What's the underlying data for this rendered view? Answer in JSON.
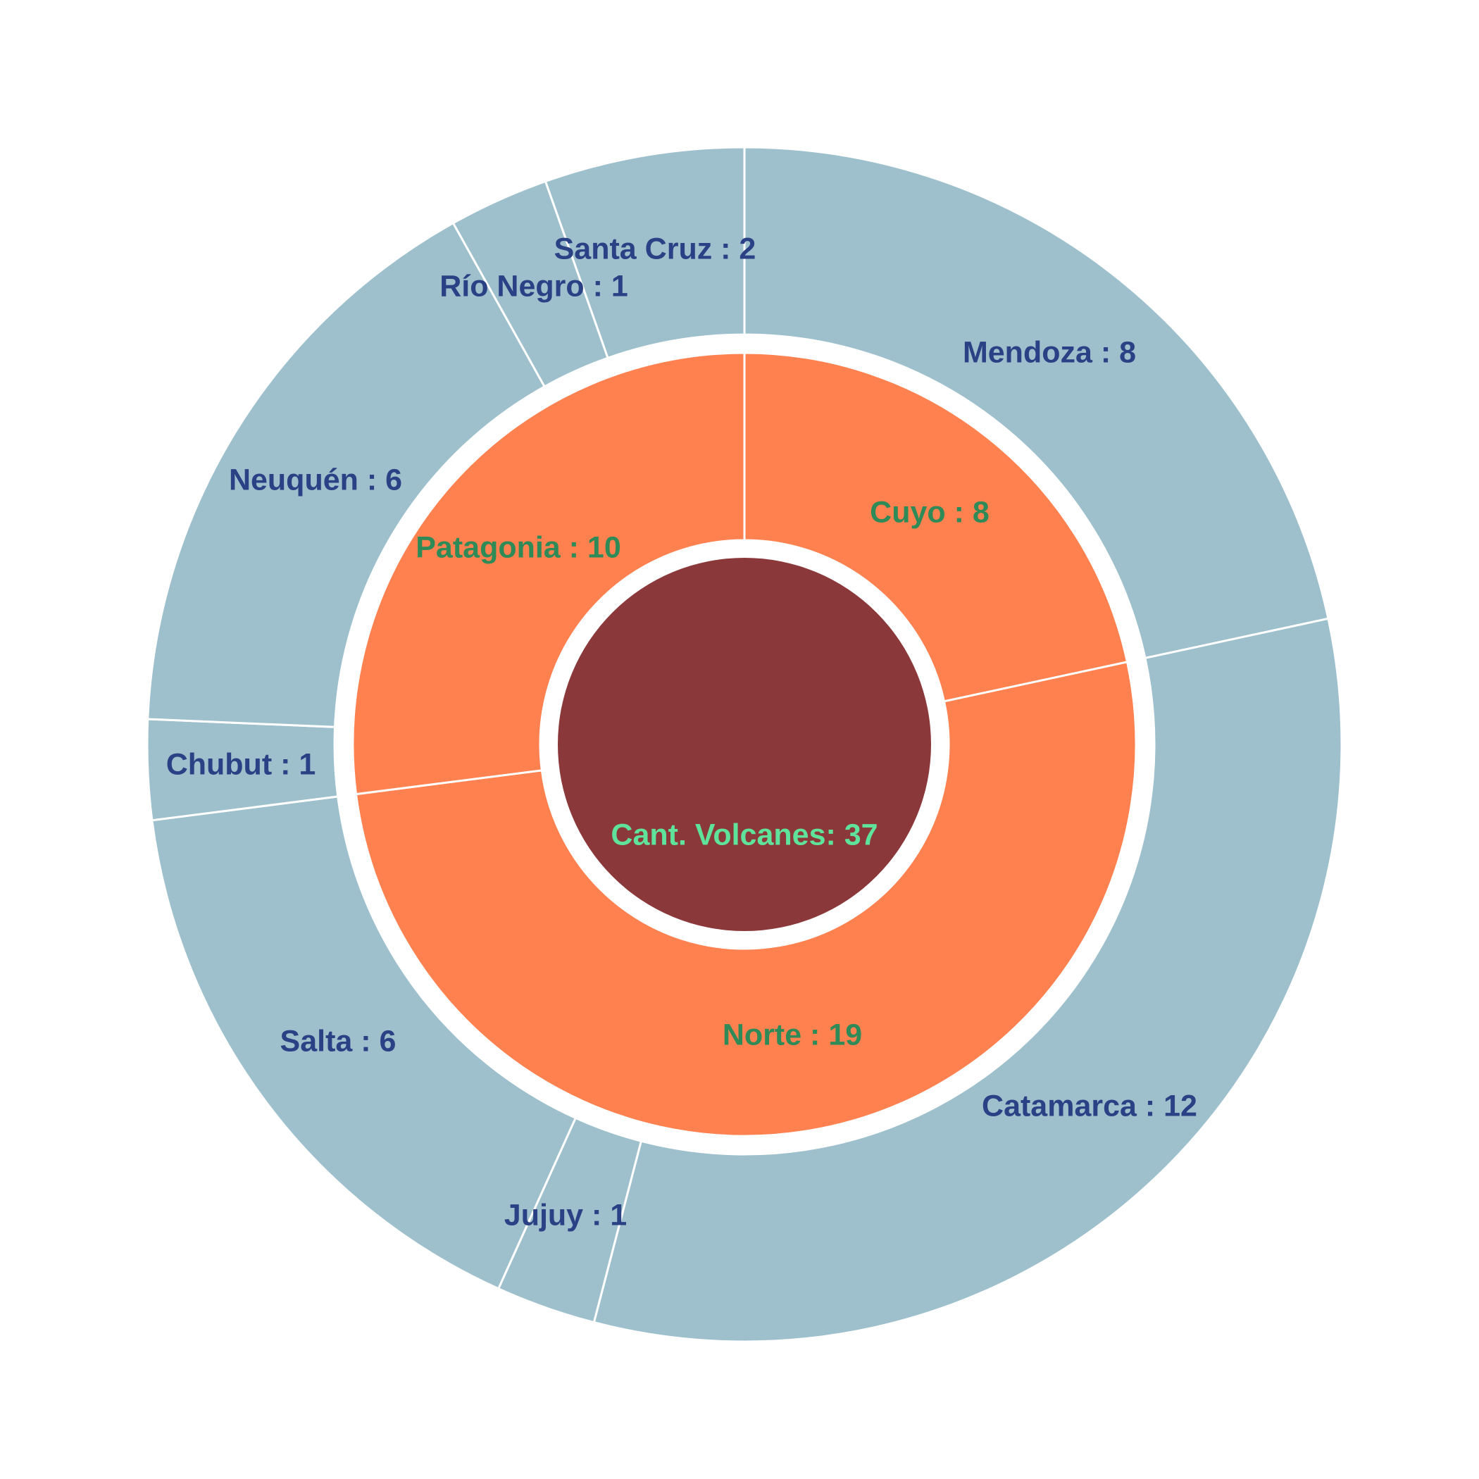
{
  "chart_data": {
    "type": "sunburst",
    "center": {
      "label": "Cant. Volcanes:  37",
      "value": 37
    },
    "regions": [
      {
        "name": "Cuyo",
        "value": 8,
        "label": "Cuyo :  8",
        "provinces": [
          {
            "name": "Mendoza",
            "value": 8,
            "label": "Mendoza  :  8"
          }
        ]
      },
      {
        "name": "Norte",
        "value": 19,
        "label": "Norte :  19",
        "provinces": [
          {
            "name": "Catamarca",
            "value": 12,
            "label": "Catamarca :  12"
          },
          {
            "name": "Jujuy",
            "value": 1,
            "label": "Jujuy :  1"
          },
          {
            "name": "Salta",
            "value": 6,
            "label": "Salta :  6"
          }
        ]
      },
      {
        "name": "Patagonia",
        "value": 10,
        "label": "Patagonia :  10",
        "provinces": [
          {
            "name": "Chubut",
            "value": 1,
            "label": "Chubut :  1"
          },
          {
            "name": "Neuquén",
            "value": 6,
            "label": "Neuquén :  6"
          },
          {
            "name": "Río Negro",
            "value": 1,
            "label": "Río Negro  :  1"
          },
          {
            "name": "Santa Cruz",
            "value": 2,
            "label": "Santa Cruz :  2"
          }
        ]
      }
    ],
    "colors": {
      "center": "#8b383a",
      "regions": "#ff8150",
      "provinces": "#9dc0cc",
      "outer_text": "#2b4185",
      "middle_text": "#2e8b57",
      "center_text": "#5fe39a"
    }
  }
}
